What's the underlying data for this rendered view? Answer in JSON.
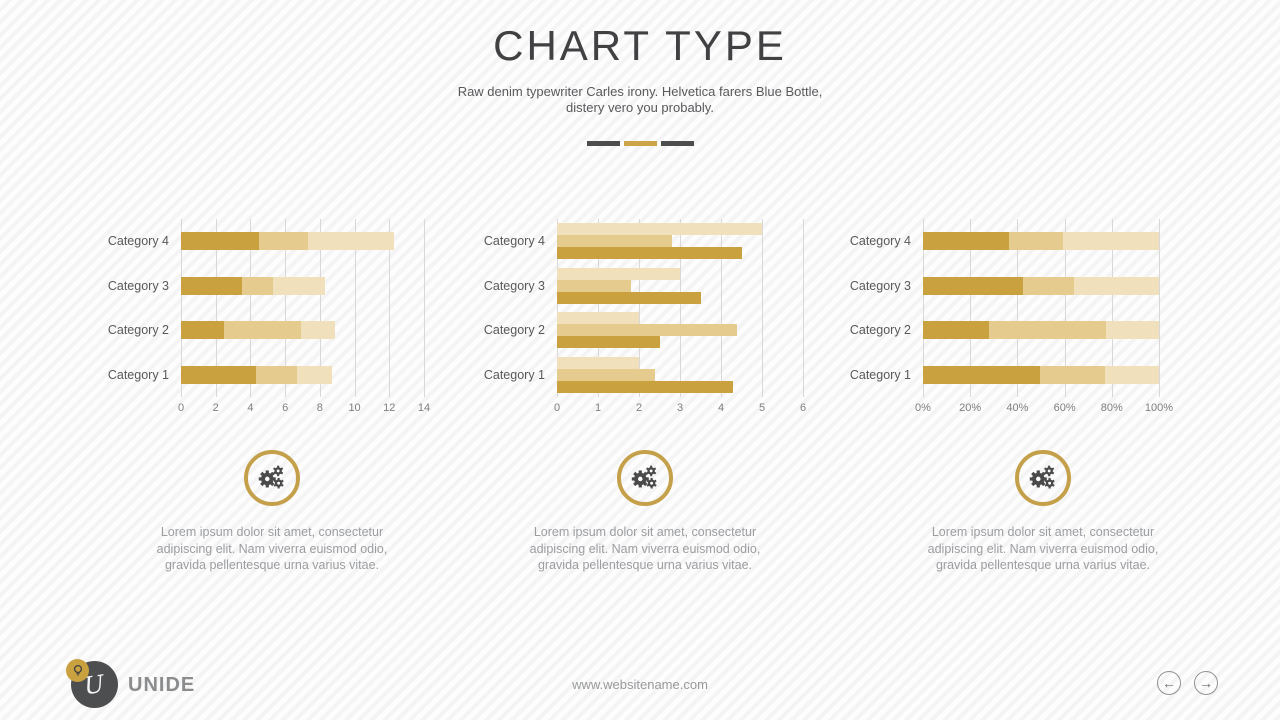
{
  "slide": {
    "title": "CHART TYPE",
    "subtitle_line1": "Raw denim typewriter Carles irony. Helvetica farers Blue Bottle,",
    "subtitle_line2": "distery vero you probably."
  },
  "divider": {
    "segment_colors": [
      "#4d4d4f",
      "#cba547",
      "#4d4d4f"
    ]
  },
  "colors": {
    "accent_gold": "#c9a23f",
    "series_dark": "#c9a23f",
    "series_medium": "#e6cb8e",
    "series_light": "#f0e1bc",
    "icon_dark": "#4a4a4b",
    "logo_circle": "#4d4e50"
  },
  "chart_data": [
    {
      "type": "bar",
      "subtype": "stacked",
      "orientation": "horizontal",
      "title": "",
      "legend": false,
      "grid": true,
      "categories_top_to_bottom": [
        "Category 4",
        "Category 3",
        "Category 2",
        "Category 1"
      ],
      "series": [
        {
          "name": "dark-gold",
          "color": "#c9a23f",
          "values": [
            4.5,
            3.5,
            2.5,
            4.3
          ]
        },
        {
          "name": "medium-gold",
          "color": "#e6cb8e",
          "values": [
            2.8,
            1.8,
            4.4,
            2.4
          ]
        },
        {
          "name": "light-gold",
          "color": "#f0e1bc",
          "values": [
            5,
            3,
            2,
            2
          ]
        }
      ],
      "xlim": [
        0,
        14
      ],
      "tick_labels": [
        "0",
        "2",
        "4",
        "6",
        "8",
        "10",
        "12",
        "14"
      ]
    },
    {
      "type": "bar",
      "subtype": "clustered",
      "orientation": "horizontal",
      "title": "",
      "legend": false,
      "grid": true,
      "categories_top_to_bottom": [
        "Category 4",
        "Category 3",
        "Category 2",
        "Category 1"
      ],
      "series": [
        {
          "name": "dark-gold",
          "color": "#c9a23f",
          "values": [
            4.5,
            3.5,
            2.5,
            4.3
          ]
        },
        {
          "name": "medium-gold",
          "color": "#e6cb8e",
          "values": [
            2.8,
            1.8,
            4.4,
            2.4
          ]
        },
        {
          "name": "light-gold",
          "color": "#f0e1bc",
          "values": [
            5,
            3,
            2,
            2
          ]
        }
      ],
      "xlim": [
        0,
        6
      ],
      "tick_labels": [
        "0",
        "1",
        "2",
        "3",
        "4",
        "5",
        "6"
      ]
    },
    {
      "type": "bar",
      "subtype": "percent-stacked",
      "orientation": "horizontal",
      "title": "",
      "legend": false,
      "grid": true,
      "categories_top_to_bottom": [
        "Category 4",
        "Category 3",
        "Category 2",
        "Category 1"
      ],
      "series": [
        {
          "name": "dark-gold",
          "color": "#c9a23f",
          "values": [
            4.5,
            3.5,
            2.5,
            4.3
          ]
        },
        {
          "name": "medium-gold",
          "color": "#e6cb8e",
          "values": [
            2.8,
            1.8,
            4.4,
            2.4
          ]
        },
        {
          "name": "light-gold",
          "color": "#f0e1bc",
          "values": [
            5,
            3,
            2,
            2
          ]
        }
      ],
      "xlim": [
        0,
        100
      ],
      "tick_labels": [
        "0%",
        "20%",
        "40%",
        "60%",
        "80%",
        "100%"
      ]
    }
  ],
  "features": [
    {
      "icon": "gears-icon",
      "text": "Lorem ipsum dolor sit amet, consectetur adipiscing elit. Nam viverra euismod odio, gravida pellentesque urna varius vitae."
    },
    {
      "icon": "gears-icon",
      "text": "Lorem ipsum dolor sit amet, consectetur adipiscing elit. Nam viverra euismod odio, gravida pellentesque urna varius vitae."
    },
    {
      "icon": "gears-icon",
      "text": "Lorem ipsum dolor sit amet, consectetur adipiscing elit. Nam viverra euismod odio, gravida pellentesque urna varius vitae."
    }
  ],
  "footer": {
    "brand": "UNIDE",
    "logo_letter": "U",
    "website": "www.websitename.com",
    "nav": {
      "prev_glyph": "←",
      "next_glyph": "→"
    }
  }
}
